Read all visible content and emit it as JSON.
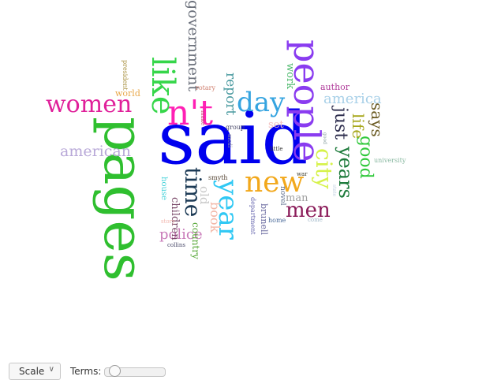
{
  "cloud": {
    "words": [
      {
        "text": "said",
        "color": "#0000ee",
        "rotate": false
      },
      {
        "text": "pages",
        "color": "#2fbf2f",
        "rotate": true
      },
      {
        "text": "people",
        "color": "#8a3cf0",
        "rotate": true
      },
      {
        "text": "n't",
        "color": "#ff1fb4",
        "rotate": false
      },
      {
        "text": "like",
        "color": "#36d64a",
        "rotate": true
      },
      {
        "text": "government",
        "color": "#6a6f7a",
        "rotate": true
      },
      {
        "text": "women",
        "color": "#e0209a",
        "rotate": false
      },
      {
        "text": "day",
        "color": "#35a4e0",
        "rotate": false
      },
      {
        "text": "new",
        "color": "#f2a81c",
        "rotate": false
      },
      {
        "text": "year",
        "color": "#30c8f4",
        "rotate": true
      },
      {
        "text": "time",
        "color": "#1c3a55",
        "rotate": true
      },
      {
        "text": "city",
        "color": "#d6f24a",
        "rotate": true
      },
      {
        "text": "years",
        "color": "#1c7a3a",
        "rotate": true
      },
      {
        "text": "just",
        "color": "#2f2f4f",
        "rotate": true
      },
      {
        "text": "men",
        "color": "#8b1c5a",
        "rotate": false
      },
      {
        "text": "good",
        "color": "#2fc83a",
        "rotate": true
      },
      {
        "text": "life",
        "color": "#a7a71c",
        "rotate": true
      },
      {
        "text": "says",
        "color": "#6a5a22",
        "rotate": true
      },
      {
        "text": "america",
        "color": "#a8d0e8",
        "rotate": false
      },
      {
        "text": "american",
        "color": "#b8a8d8",
        "rotate": false
      },
      {
        "text": "report",
        "color": "#4a9aa0",
        "rotate": true
      },
      {
        "text": "police",
        "color": "#c87ab8",
        "rotate": false
      },
      {
        "text": "author",
        "color": "#b03a9a",
        "rotate": false
      },
      {
        "text": "book",
        "color": "#f2b8a8",
        "rotate": true
      },
      {
        "text": "old",
        "color": "#c8c8c8",
        "rotate": true
      },
      {
        "text": "children",
        "color": "#7a4a6a",
        "rotate": true
      },
      {
        "text": "work",
        "color": "#4ab86a",
        "rotate": true
      },
      {
        "text": "world",
        "color": "#e8a84a",
        "rotate": false
      },
      {
        "text": "set",
        "color": "#f2c0c0",
        "rotate": false
      },
      {
        "text": "man",
        "color": "#a0a0a0",
        "rotate": false
      },
      {
        "text": "country",
        "color": "#58a838",
        "rotate": true
      },
      {
        "text": "brunell",
        "color": "#6a6aa0",
        "rotate": true
      },
      {
        "text": "house",
        "color": "#40d0d8",
        "rotate": true
      },
      {
        "text": "university",
        "color": "#88b8a0",
        "rotate": false
      },
      {
        "text": "novel",
        "color": "#5a6a8a",
        "rotate": true
      },
      {
        "text": "department",
        "color": "#6a6ab0",
        "rotate": true
      },
      {
        "text": "president",
        "color": "#a89040",
        "rotate": true
      },
      {
        "text": "rotary",
        "color": "#d08070",
        "rotate": false
      },
      {
        "text": "make",
        "color": "#c84a7a",
        "rotate": true
      },
      {
        "text": "group",
        "color": "#4a4a6a",
        "rotate": false
      },
      {
        "text": "smyth",
        "color": "#5a4a3a",
        "rotate": false
      },
      {
        "text": "little",
        "color": "#3a3a3a",
        "rotate": false
      },
      {
        "text": "war",
        "color": "#3a3a2a",
        "rotate": false
      },
      {
        "text": "home",
        "color": "#4a6a9a",
        "rotate": false
      },
      {
        "text": "come",
        "color": "#a0b8c8",
        "rotate": false
      },
      {
        "text": "story",
        "color": "#f2b8b0",
        "rotate": false
      },
      {
        "text": "collins",
        "color": "#4a4a6a",
        "rotate": false
      },
      {
        "text": "mcdi",
        "color": "#8a8aa0",
        "rotate": true
      },
      {
        "text": "good",
        "color": "#8aa0a0",
        "rotate": true
      },
      {
        "text": "state",
        "color": "#c0d0e0",
        "rotate": true
      }
    ]
  },
  "toolbar": {
    "scale_label": "Scale",
    "terms_label": "Terms:",
    "terms_slider_value": 0.08
  }
}
